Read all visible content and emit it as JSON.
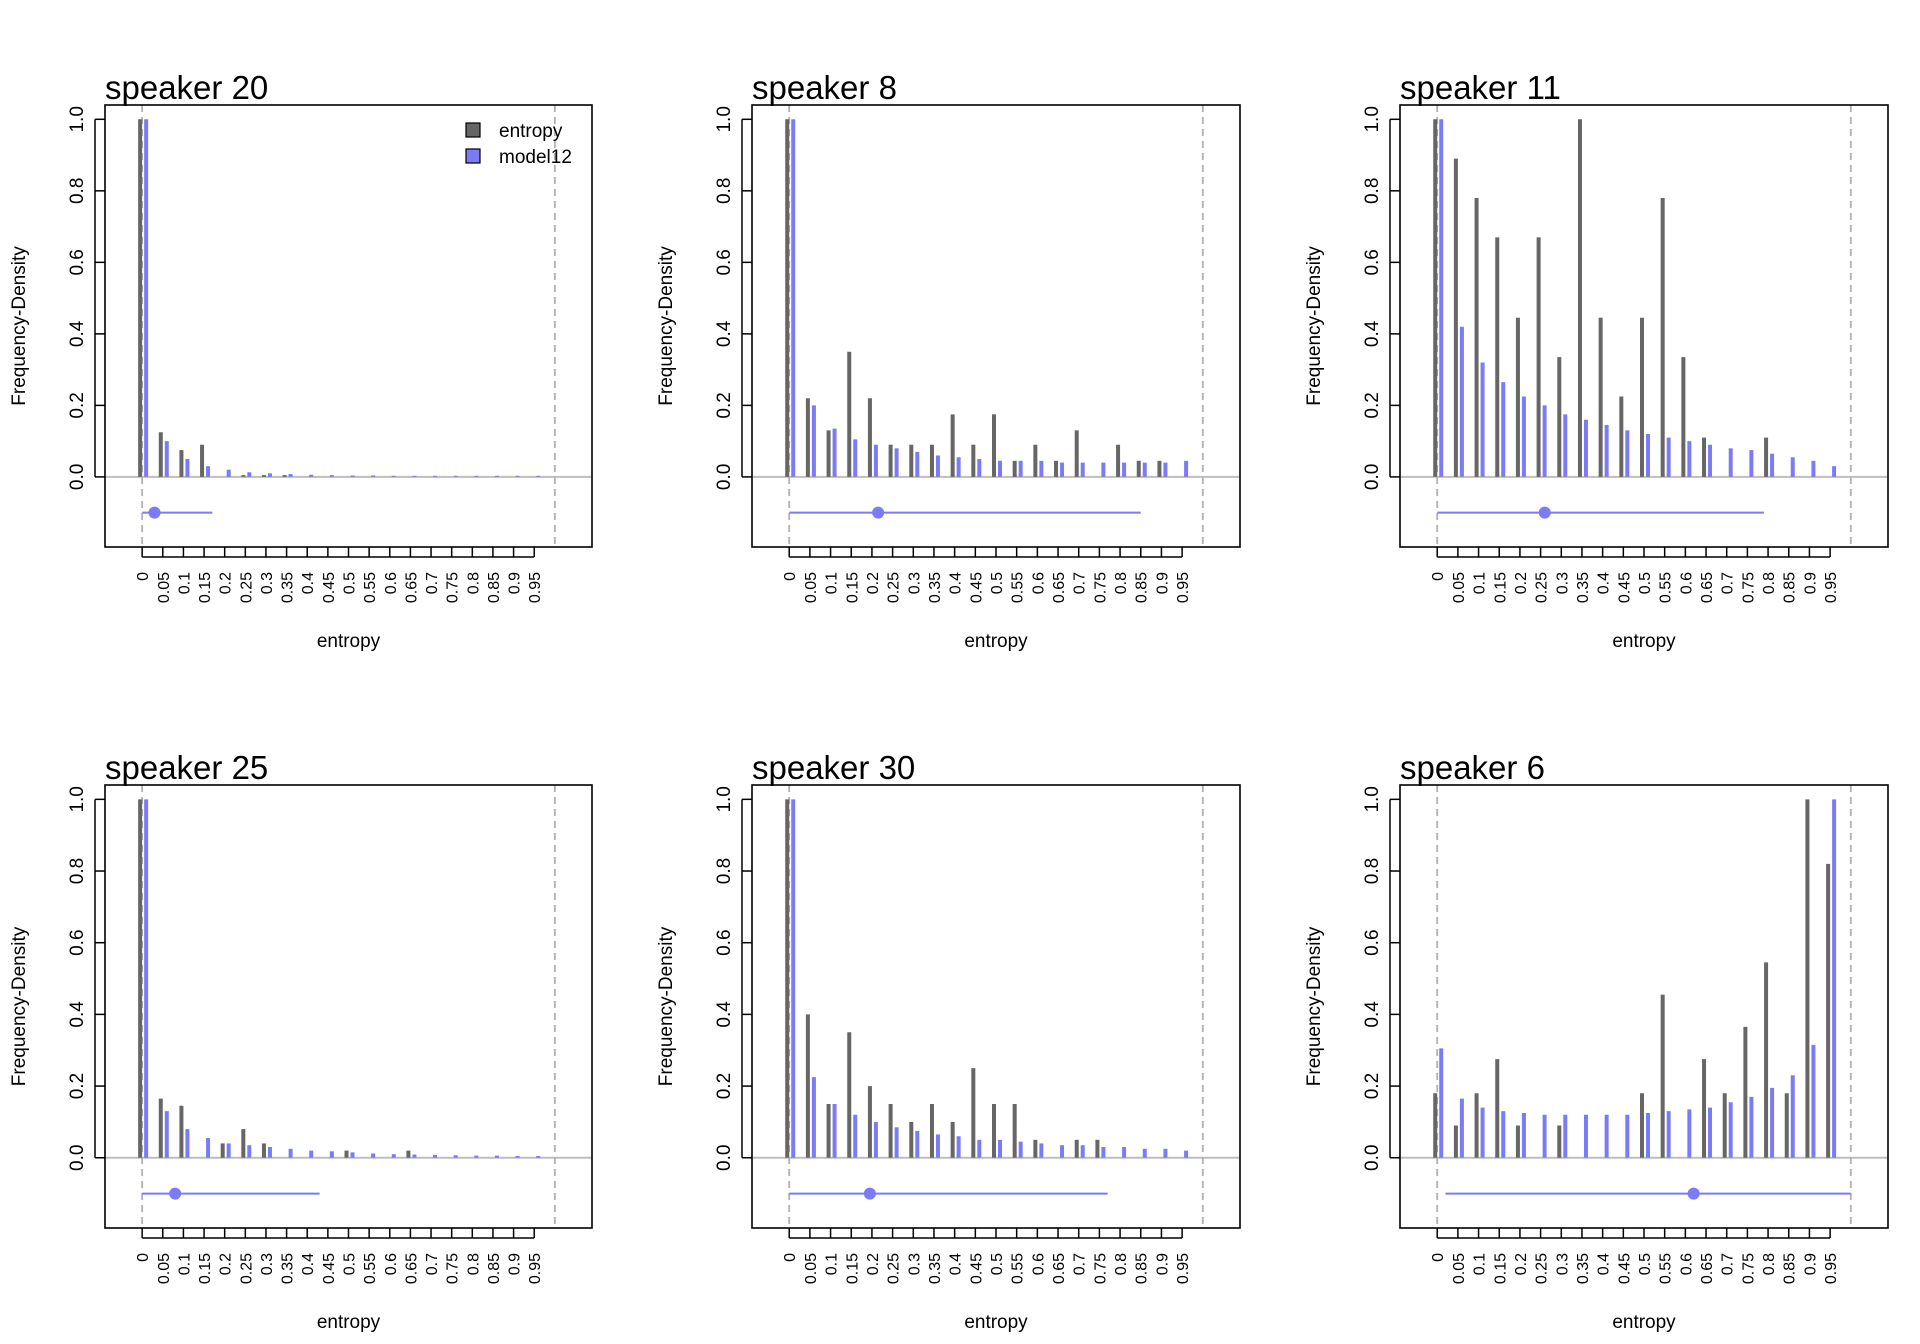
{
  "colors": {
    "entropy": "#666666",
    "model": "#7b7bf5",
    "zero_line": "#bebebe",
    "ref_line": "#b0b0b0"
  },
  "legend": {
    "entries": [
      "entropy",
      "model12"
    ],
    "placement": "top-right of first panel"
  },
  "chart_data": [
    {
      "type": "bar",
      "title": "speaker 20",
      "xlabel": "entropy",
      "ylabel": "Frequency-Density",
      "ylim": [
        -0.2,
        1.0
      ],
      "yticks": [
        "0.0",
        "0.2",
        "0.4",
        "0.6",
        "0.8",
        "1.0"
      ],
      "categories": [
        "0",
        "0.05",
        "0.1",
        "0.15",
        "0.2",
        "0.25",
        "0.3",
        "0.35",
        "0.4",
        "0.45",
        "0.5",
        "0.55",
        "0.6",
        "0.65",
        "0.7",
        "0.75",
        "0.8",
        "0.85",
        "0.9",
        "0.95"
      ],
      "series": [
        {
          "name": "entropy",
          "values": [
            1.0,
            0.125,
            0.075,
            0.09,
            0,
            0.005,
            0.005,
            0.005,
            0,
            0,
            0,
            0,
            0,
            0,
            0,
            0,
            0,
            0,
            0,
            0
          ]
        },
        {
          "name": "model12",
          "values": [
            1.0,
            0.1,
            0.05,
            0.03,
            0.02,
            0.013,
            0.01,
            0.008,
            0.006,
            0.005,
            0.004,
            0.004,
            0.003,
            0.003,
            0.003,
            0.003,
            0.003,
            0.003,
            0.003,
            0.003
          ]
        }
      ],
      "vlines": [
        0,
        1.0
      ],
      "interval": {
        "low": 0,
        "high": 0.17,
        "point": 0.03,
        "y": -0.1
      }
    },
    {
      "type": "bar",
      "title": "speaker 8",
      "xlabel": "entropy",
      "ylabel": "Frequency-Density",
      "ylim": [
        -0.2,
        1.0
      ],
      "yticks": [
        "0.0",
        "0.2",
        "0.4",
        "0.6",
        "0.8",
        "1.0"
      ],
      "categories": [
        "0",
        "0.05",
        "0.1",
        "0.15",
        "0.2",
        "0.25",
        "0.3",
        "0.35",
        "0.4",
        "0.45",
        "0.5",
        "0.55",
        "0.6",
        "0.65",
        "0.7",
        "0.75",
        "0.8",
        "0.85",
        "0.9",
        "0.95"
      ],
      "series": [
        {
          "name": "entropy",
          "values": [
            1.0,
            0.22,
            0.13,
            0.35,
            0.22,
            0.09,
            0.09,
            0.09,
            0.175,
            0.09,
            0.175,
            0.045,
            0.09,
            0.045,
            0.13,
            0,
            0.09,
            0.045,
            0.045,
            0
          ]
        },
        {
          "name": "model12",
          "values": [
            1.0,
            0.2,
            0.135,
            0.105,
            0.09,
            0.08,
            0.07,
            0.06,
            0.055,
            0.05,
            0.045,
            0.045,
            0.045,
            0.04,
            0.04,
            0.04,
            0.04,
            0.04,
            0.04,
            0.045
          ]
        }
      ],
      "vlines": [
        0,
        1.0
      ],
      "interval": {
        "low": 0,
        "high": 0.85,
        "point": 0.215,
        "y": -0.1
      }
    },
    {
      "type": "bar",
      "title": "speaker 11",
      "xlabel": "entropy",
      "ylabel": "Frequency-Density",
      "ylim": [
        -0.2,
        1.0
      ],
      "yticks": [
        "0.0",
        "0.2",
        "0.4",
        "0.6",
        "0.8",
        "1.0"
      ],
      "categories": [
        "0",
        "0.05",
        "0.1",
        "0.15",
        "0.2",
        "0.25",
        "0.3",
        "0.35",
        "0.4",
        "0.45",
        "0.5",
        "0.55",
        "0.6",
        "0.65",
        "0.7",
        "0.75",
        "0.8",
        "0.85",
        "0.9",
        "0.95"
      ],
      "series": [
        {
          "name": "entropy",
          "values": [
            1.0,
            0.89,
            0.78,
            0.67,
            0.445,
            0.67,
            0.335,
            1.0,
            0.445,
            0.225,
            0.445,
            0.78,
            0.335,
            0.11,
            0,
            0,
            0.11,
            0,
            0,
            0
          ]
        },
        {
          "name": "model12",
          "values": [
            1.0,
            0.42,
            0.32,
            0.265,
            0.225,
            0.2,
            0.175,
            0.16,
            0.145,
            0.13,
            0.12,
            0.11,
            0.1,
            0.09,
            0.08,
            0.075,
            0.065,
            0.055,
            0.045,
            0.03
          ]
        }
      ],
      "vlines": [
        0,
        1.0
      ],
      "interval": {
        "low": 0,
        "high": 0.79,
        "point": 0.26,
        "y": -0.1
      }
    },
    {
      "type": "bar",
      "title": "speaker 25",
      "xlabel": "entropy",
      "ylabel": "Frequency-Density",
      "ylim": [
        -0.2,
        1.0
      ],
      "yticks": [
        "0.0",
        "0.2",
        "0.4",
        "0.6",
        "0.8",
        "1.0"
      ],
      "categories": [
        "0",
        "0.05",
        "0.1",
        "0.15",
        "0.2",
        "0.25",
        "0.3",
        "0.35",
        "0.4",
        "0.45",
        "0.5",
        "0.55",
        "0.6",
        "0.65",
        "0.7",
        "0.75",
        "0.8",
        "0.85",
        "0.9",
        "0.95"
      ],
      "series": [
        {
          "name": "entropy",
          "values": [
            1.0,
            0.165,
            0.145,
            0,
            0.04,
            0.08,
            0.04,
            0,
            0,
            0,
            0.02,
            0,
            0,
            0.02,
            0,
            0,
            0,
            0,
            0,
            0
          ]
        },
        {
          "name": "model12",
          "values": [
            1.0,
            0.13,
            0.08,
            0.055,
            0.04,
            0.035,
            0.03,
            0.025,
            0.02,
            0.018,
            0.015,
            0.012,
            0.01,
            0.009,
            0.008,
            0.007,
            0.006,
            0.006,
            0.005,
            0.005
          ]
        }
      ],
      "vlines": [
        0,
        1.0
      ],
      "interval": {
        "low": 0,
        "high": 0.43,
        "point": 0.08,
        "y": -0.1
      }
    },
    {
      "type": "bar",
      "title": "speaker 30",
      "xlabel": "entropy",
      "ylabel": "Frequency-Density",
      "ylim": [
        -0.2,
        1.0
      ],
      "yticks": [
        "0.0",
        "0.2",
        "0.4",
        "0.6",
        "0.8",
        "1.0"
      ],
      "categories": [
        "0",
        "0.05",
        "0.1",
        "0.15",
        "0.2",
        "0.25",
        "0.3",
        "0.35",
        "0.4",
        "0.45",
        "0.5",
        "0.55",
        "0.6",
        "0.65",
        "0.7",
        "0.75",
        "0.8",
        "0.85",
        "0.9",
        "0.95"
      ],
      "series": [
        {
          "name": "entropy",
          "values": [
            1.0,
            0.4,
            0.15,
            0.35,
            0.2,
            0.15,
            0.1,
            0.15,
            0.1,
            0.25,
            0.15,
            0.15,
            0.05,
            0,
            0.05,
            0.05,
            0,
            0,
            0,
            0
          ]
        },
        {
          "name": "model12",
          "values": [
            1.0,
            0.225,
            0.15,
            0.12,
            0.1,
            0.085,
            0.075,
            0.065,
            0.06,
            0.05,
            0.05,
            0.045,
            0.04,
            0.035,
            0.035,
            0.03,
            0.03,
            0.025,
            0.025,
            0.02
          ]
        }
      ],
      "vlines": [
        0,
        1.0
      ],
      "interval": {
        "low": 0,
        "high": 0.77,
        "point": 0.195,
        "y": -0.1
      }
    },
    {
      "type": "bar",
      "title": "speaker 6",
      "xlabel": "entropy",
      "ylabel": "Frequency-Density",
      "ylim": [
        -0.2,
        1.0
      ],
      "yticks": [
        "0.0",
        "0.2",
        "0.4",
        "0.6",
        "0.8",
        "1.0"
      ],
      "categories": [
        "0",
        "0.05",
        "0.1",
        "0.15",
        "0.2",
        "0.25",
        "0.3",
        "0.35",
        "0.4",
        "0.45",
        "0.5",
        "0.55",
        "0.6",
        "0.65",
        "0.7",
        "0.75",
        "0.8",
        "0.85",
        "0.9",
        "0.95"
      ],
      "series": [
        {
          "name": "entropy",
          "values": [
            0.18,
            0.09,
            0.18,
            0.275,
            0.09,
            0,
            0.09,
            0,
            0,
            0,
            0.18,
            0.455,
            0,
            0.275,
            0.18,
            0.365,
            0.545,
            0.18,
            1.0,
            0.82
          ]
        },
        {
          "name": "model12",
          "values": [
            0.305,
            0.165,
            0.14,
            0.13,
            0.125,
            0.12,
            0.12,
            0.12,
            0.12,
            0.12,
            0.125,
            0.13,
            0.135,
            0.14,
            0.155,
            0.17,
            0.195,
            0.23,
            0.315,
            1.0
          ]
        }
      ],
      "vlines": [
        0,
        1.0
      ],
      "interval": {
        "low": 0.02,
        "high": 1.0,
        "point": 0.62,
        "y": -0.1
      }
    }
  ]
}
